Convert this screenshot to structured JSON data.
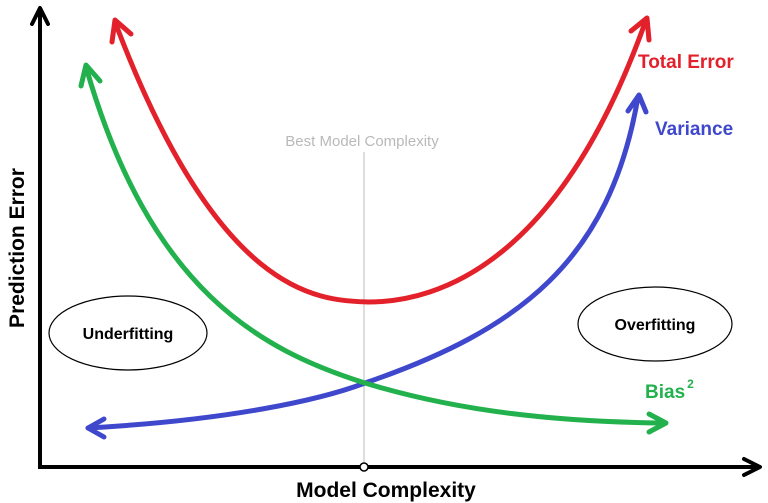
{
  "axes": {
    "x_label": "Model Complexity",
    "y_label": "Prediction Error"
  },
  "marker": {
    "label": "Best Model Complexity"
  },
  "curves": {
    "total_error": {
      "label": "Total Error",
      "color": "#e3212b"
    },
    "variance": {
      "label": "Variance",
      "color": "#3f48cc"
    },
    "bias": {
      "label": "Bias",
      "superscript": "2",
      "color": "#22b14c"
    }
  },
  "regions": {
    "underfitting": "Underfitting",
    "overfitting": "Overfitting"
  }
}
